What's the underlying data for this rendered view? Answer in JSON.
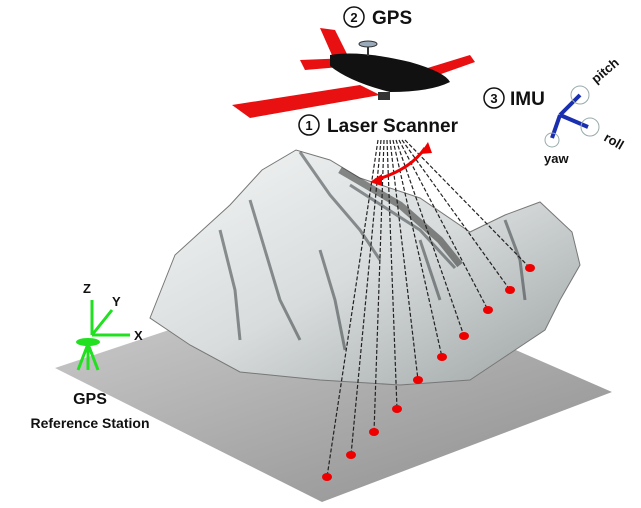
{
  "components": [
    {
      "number": "2",
      "label": "GPS"
    },
    {
      "number": "1",
      "label": "Laser Scanner"
    },
    {
      "number": "3",
      "label": "IMU"
    }
  ],
  "imu_axes": [
    "pitch",
    "roll",
    "yaw"
  ],
  "reference_axes": [
    "Z",
    "Y",
    "X"
  ],
  "reference_station": {
    "line1": "GPS",
    "line2": "Reference Station"
  }
}
